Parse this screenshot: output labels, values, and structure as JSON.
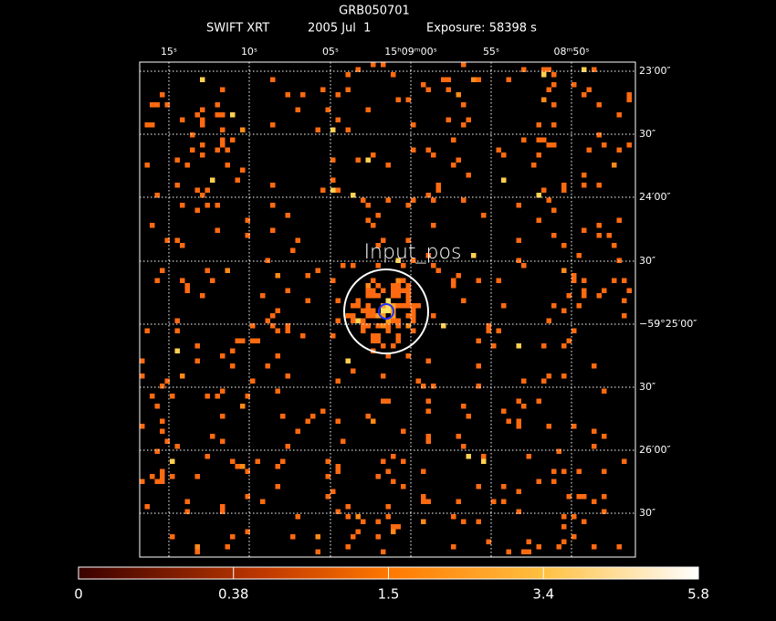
{
  "header": {
    "object": "GRB050701",
    "instrument": "SWIFT XRT",
    "date": "2005 Jul  1",
    "exposure": "Exposure: 58398 s"
  },
  "ra_labels": [
    "15ˢ",
    "10ˢ",
    "05ˢ",
    "15ʰ09ᵐ00ˢ",
    "55ˢ",
    "08ᵐ50ˢ"
  ],
  "dec_labels": [
    "23′00″",
    "30″",
    "24′00″",
    "30″",
    "−59°25′00″",
    "30″",
    "26′00″",
    "30″"
  ],
  "region_label": "Input_pos",
  "colorbar": {
    "labels": [
      "0",
      "0.38",
      "1.5",
      "3.4",
      "5.8"
    ]
  }
}
